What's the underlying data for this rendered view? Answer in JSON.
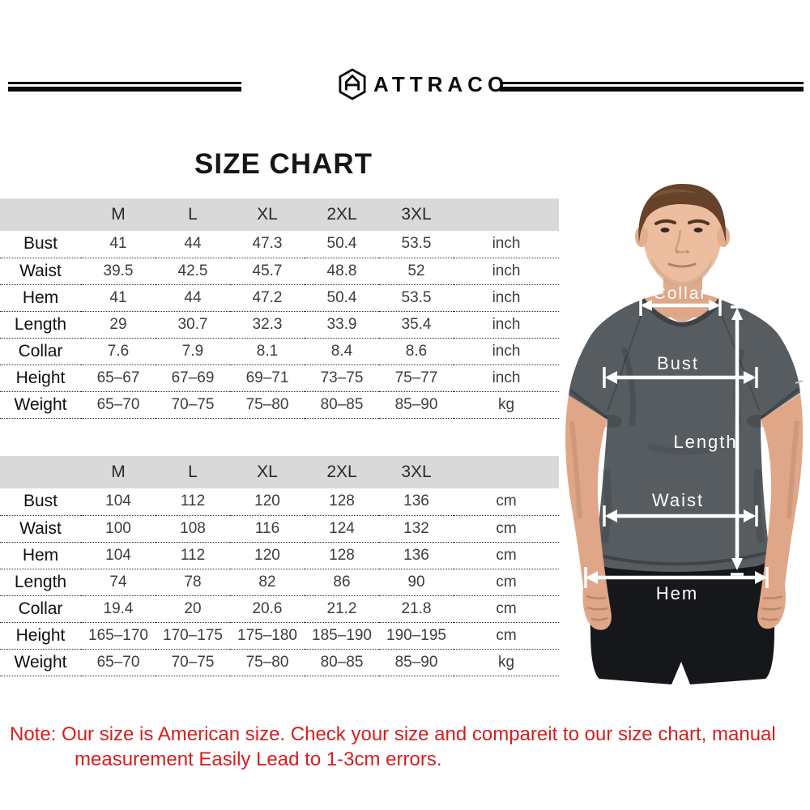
{
  "brand": {
    "name": "ATTRACO"
  },
  "title": "SIZE CHART",
  "chart_data": [
    {
      "type": "table",
      "unit_system": "inch",
      "columns": [
        "M",
        "L",
        "XL",
        "2XL",
        "3XL"
      ],
      "rows": [
        {
          "label": "Bust",
          "values": [
            "41",
            "44",
            "47.3",
            "50.4",
            "53.5"
          ],
          "unit": "inch"
        },
        {
          "label": "Waist",
          "values": [
            "39.5",
            "42.5",
            "45.7",
            "48.8",
            "52"
          ],
          "unit": "inch"
        },
        {
          "label": "Hem",
          "values": [
            "41",
            "44",
            "47.2",
            "50.4",
            "53.5"
          ],
          "unit": "inch"
        },
        {
          "label": "Length",
          "values": [
            "29",
            "30.7",
            "32.3",
            "33.9",
            "35.4"
          ],
          "unit": "inch"
        },
        {
          "label": "Collar",
          "values": [
            "7.6",
            "7.9",
            "8.1",
            "8.4",
            "8.6"
          ],
          "unit": "inch"
        },
        {
          "label": "Height",
          "values": [
            "65–67",
            "67–69",
            "69–71",
            "73–75",
            "75–77"
          ],
          "unit": "inch"
        },
        {
          "label": "Weight",
          "values": [
            "65–70",
            "70–75",
            "75–80",
            "80–85",
            "85–90"
          ],
          "unit": "kg"
        }
      ]
    },
    {
      "type": "table",
      "unit_system": "cm",
      "columns": [
        "M",
        "L",
        "XL",
        "2XL",
        "3XL"
      ],
      "rows": [
        {
          "label": "Bust",
          "values": [
            "104",
            "112",
            "120",
            "128",
            "136"
          ],
          "unit": "cm"
        },
        {
          "label": "Waist",
          "values": [
            "100",
            "108",
            "116",
            "124",
            "132"
          ],
          "unit": "cm"
        },
        {
          "label": "Hem",
          "values": [
            "104",
            "112",
            "120",
            "128",
            "136"
          ],
          "unit": "cm"
        },
        {
          "label": "Length",
          "values": [
            "74",
            "78",
            "82",
            "86",
            "90"
          ],
          "unit": "cm"
        },
        {
          "label": "Collar",
          "values": [
            "19.4",
            "20",
            "20.6",
            "21.2",
            "21.8"
          ],
          "unit": "cm"
        },
        {
          "label": "Height",
          "values": [
            "165–170",
            "170–175",
            "175–180",
            "185–190",
            "190–195"
          ],
          "unit": "cm"
        },
        {
          "label": "Weight",
          "values": [
            "65–70",
            "70–75",
            "75–80",
            "80–85",
            "85–90"
          ],
          "unit": "kg"
        }
      ]
    }
  ],
  "figure": {
    "annotations": {
      "collar": "Collar",
      "bust": "Bust",
      "length": "Length",
      "waist": "Waist",
      "hem": "Hem"
    }
  },
  "note": {
    "line1": "Note:  Our size is American size. Check your size and compareit to our size chart, manual",
    "line2": "measurement Easily Lead to 1-3cm errors."
  },
  "colors": {
    "note_red": "#d81d1d",
    "header_gray": "#d9d9d9",
    "shirt_gray": "#565c60",
    "shorts_black": "#16171a",
    "annotation_white": "#ffffff"
  }
}
